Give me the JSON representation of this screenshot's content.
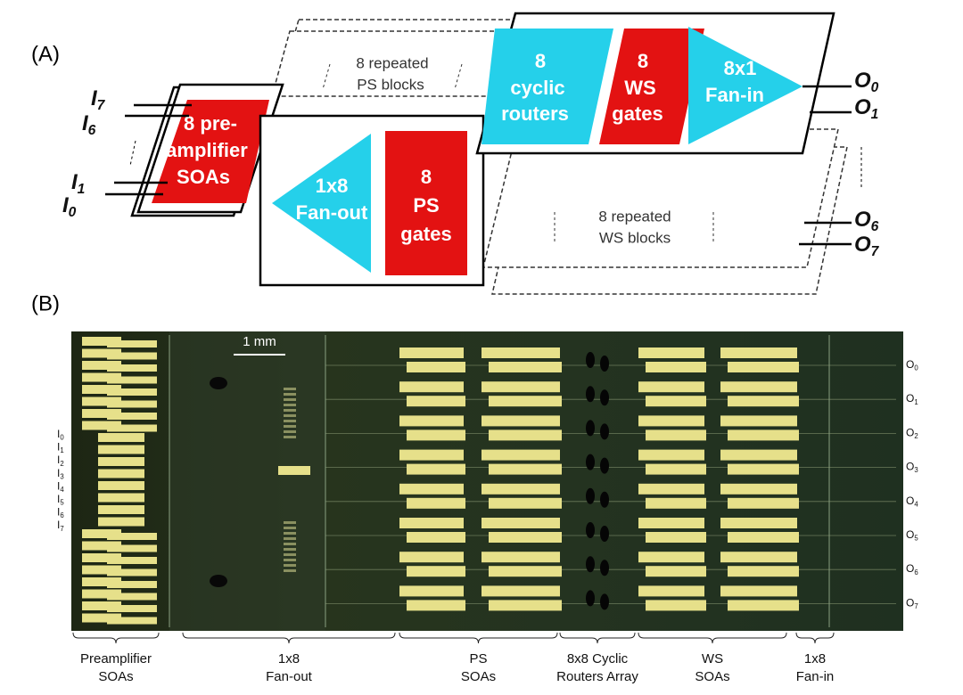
{
  "panel_a": {
    "label": "(A)",
    "ps_blocks": [
      "8 repeated",
      "PS blocks"
    ],
    "preamp": [
      "8 pre-",
      "amplifier",
      "SOAs"
    ],
    "fanout": [
      "1x8",
      "Fan-out"
    ],
    "ps_gates": [
      "8",
      "PS",
      "gates"
    ],
    "routers": [
      "8",
      "cyclic",
      "routers"
    ],
    "ws_gates": [
      "8",
      "WS",
      "gates"
    ],
    "fanin": [
      "8x1",
      "Fan-in"
    ],
    "ws_blocks": [
      "8 repeated",
      "WS blocks"
    ],
    "inputs": [
      {
        "letter": "I",
        "index": "7"
      },
      {
        "letter": "I",
        "index": "6"
      },
      {
        "letter": "I",
        "index": "1"
      },
      {
        "letter": "I",
        "index": "0"
      }
    ],
    "outputs": [
      {
        "letter": "O",
        "index": "0"
      },
      {
        "letter": "O",
        "index": "1"
      },
      {
        "letter": "O",
        "index": "6"
      },
      {
        "letter": "O",
        "index": "7"
      }
    ]
  },
  "panel_b": {
    "label": "(B)",
    "scale_bar": "1 mm",
    "inputs": [
      {
        "letter": "I",
        "index": "0"
      },
      {
        "letter": "I",
        "index": "1"
      },
      {
        "letter": "I",
        "index": "2"
      },
      {
        "letter": "I",
        "index": "3"
      },
      {
        "letter": "I",
        "index": "4"
      },
      {
        "letter": "I",
        "index": "5"
      },
      {
        "letter": "I",
        "index": "6"
      },
      {
        "letter": "I",
        "index": "7"
      }
    ],
    "outputs": [
      {
        "letter": "O",
        "index": "0"
      },
      {
        "letter": "O",
        "index": "1"
      },
      {
        "letter": "O",
        "index": "2"
      },
      {
        "letter": "O",
        "index": "3"
      },
      {
        "letter": "O",
        "index": "4"
      },
      {
        "letter": "O",
        "index": "5"
      },
      {
        "letter": "O",
        "index": "6"
      },
      {
        "letter": "O",
        "index": "7"
      }
    ],
    "sections": [
      [
        "Preamplifier",
        "SOAs"
      ],
      [
        "1x8",
        "Fan-out"
      ],
      [
        "PS",
        "SOAs"
      ],
      [
        "8x8 Cyclic",
        "Routers Array"
      ],
      [
        "WS",
        "SOAs"
      ],
      [
        "1x8",
        "Fan-in"
      ]
    ]
  }
}
